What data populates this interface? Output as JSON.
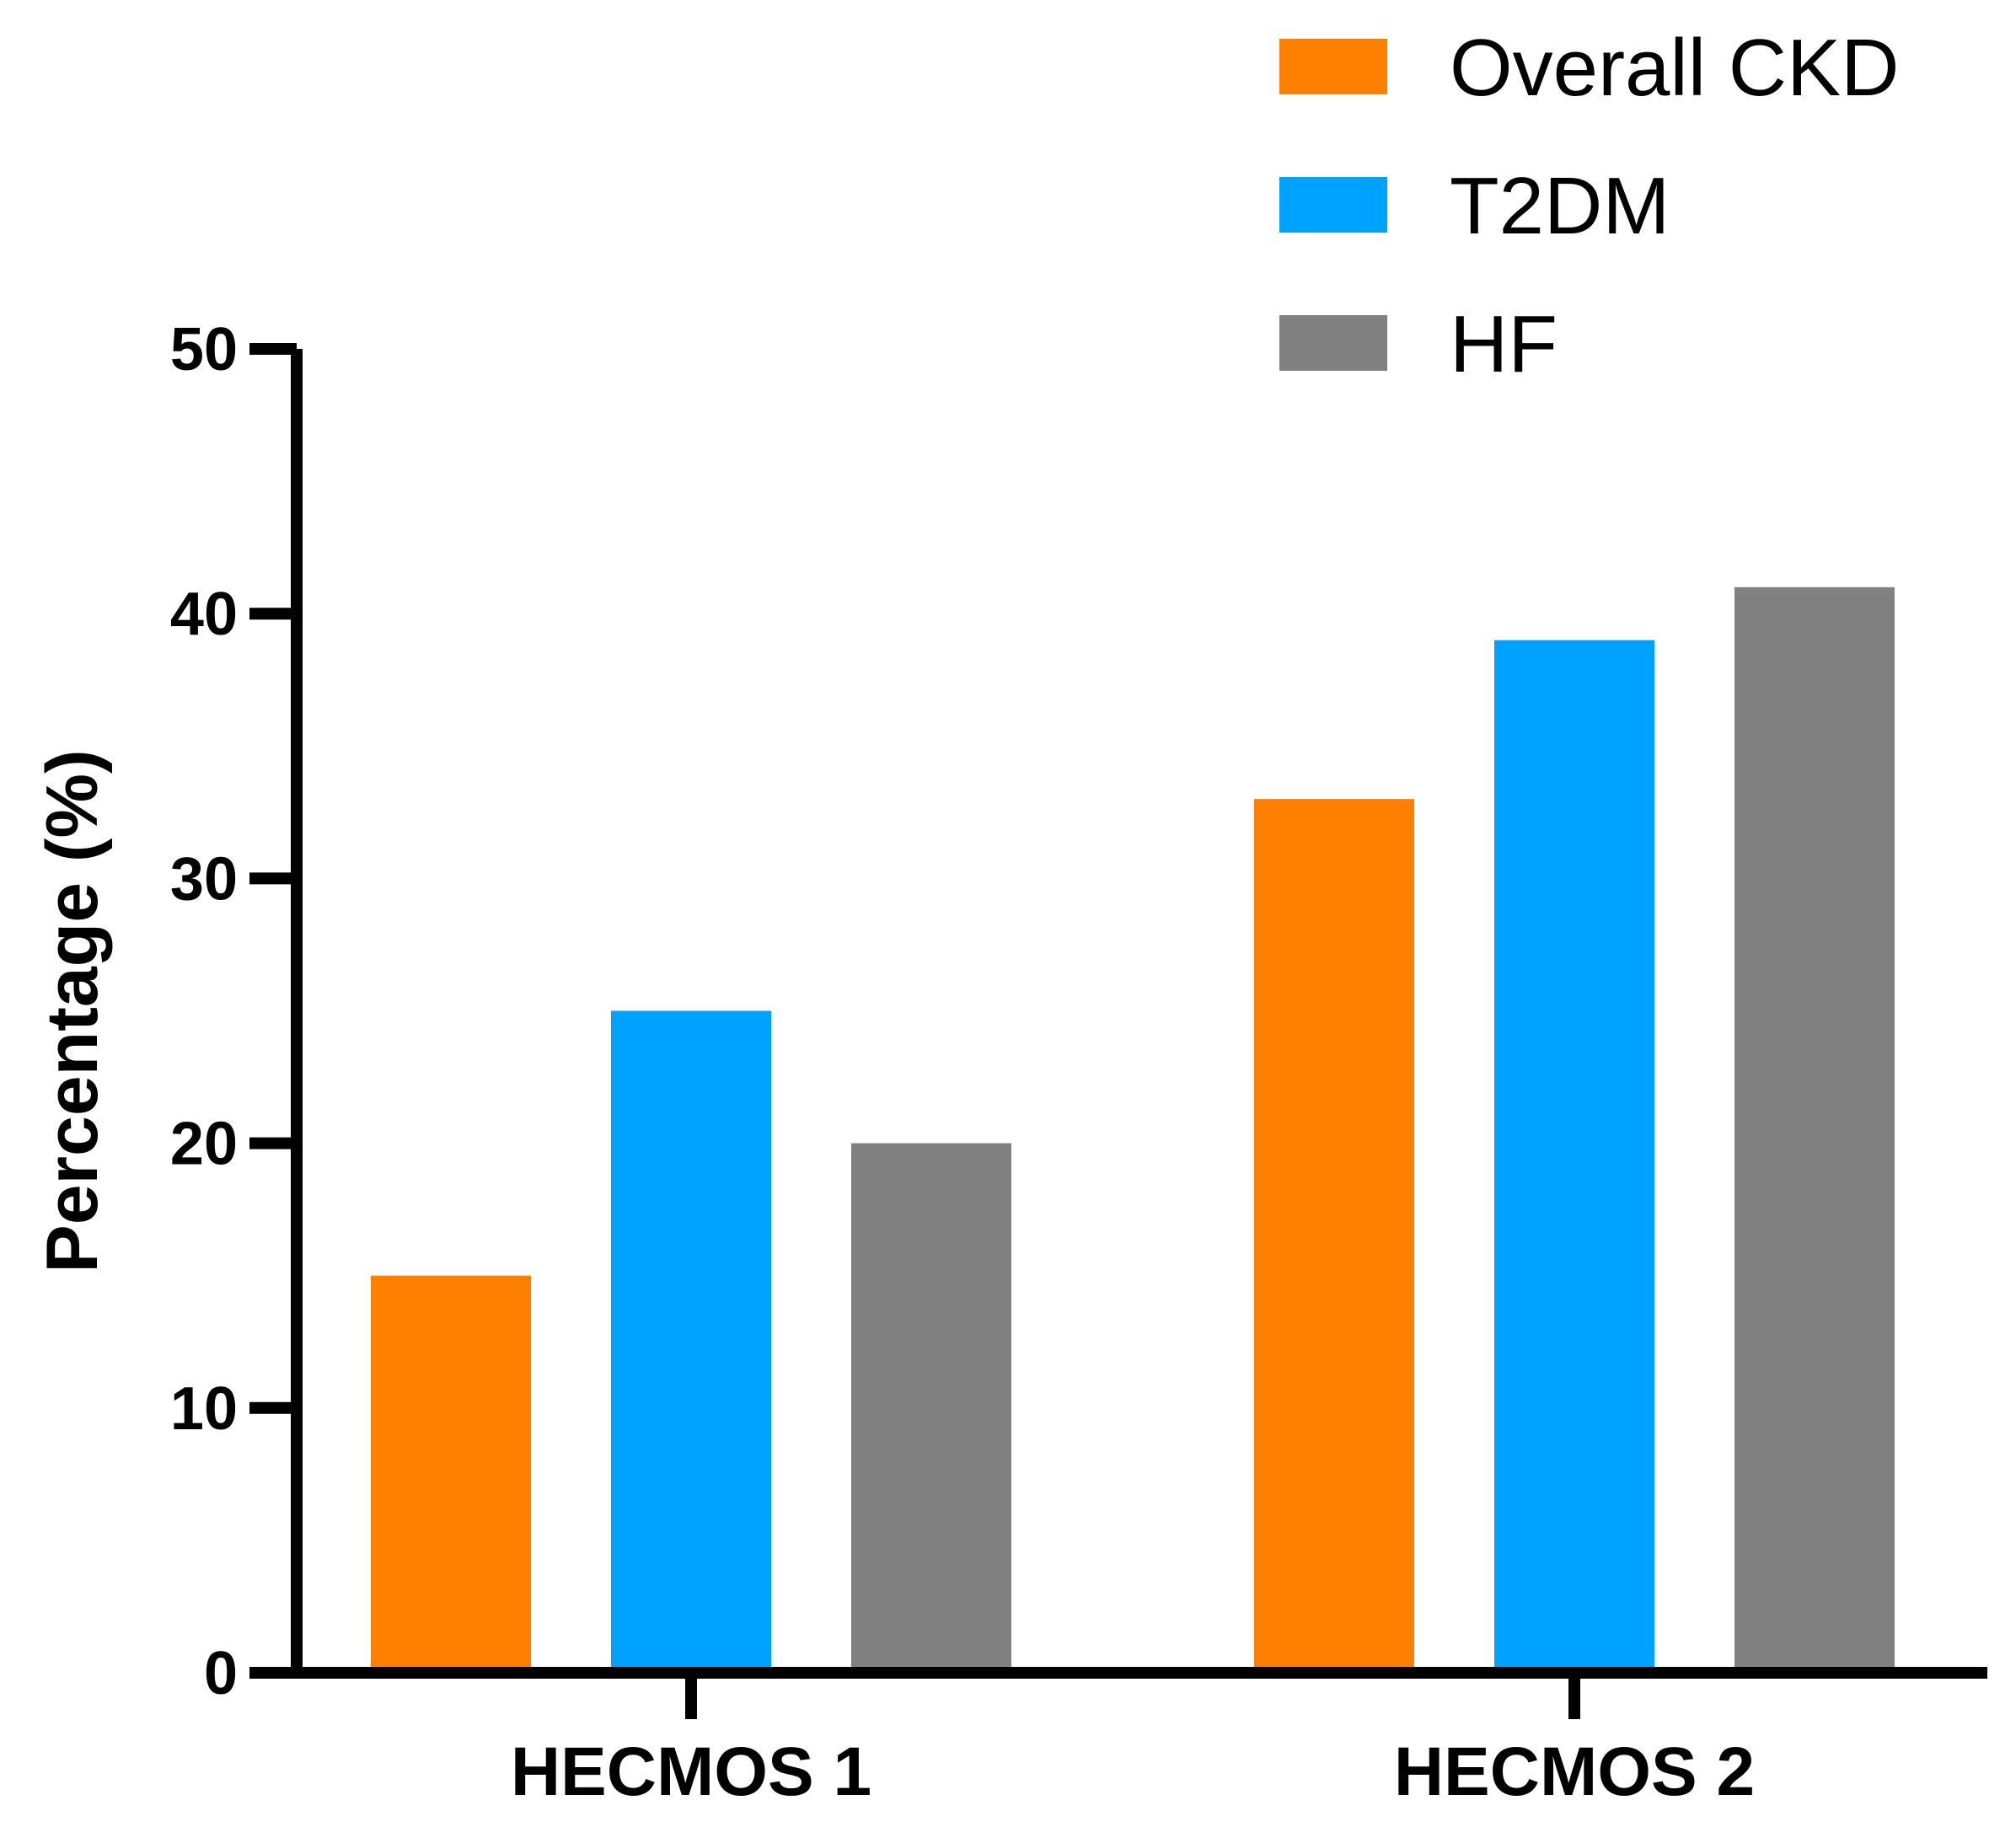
{
  "chart_data": {
    "type": "bar",
    "title": "",
    "xlabel": "",
    "ylabel": "Percentage (%)",
    "ylim": [
      0,
      50
    ],
    "yticks": [
      "0",
      "10",
      "20",
      "30",
      "40",
      "50"
    ],
    "categories": [
      "HECMOS 1",
      "HECMOS 2"
    ],
    "series": [
      {
        "name": "Overall CKD",
        "color": "#FF8000",
        "values": [
          15,
          33
        ]
      },
      {
        "name": "T2DM",
        "color": "#00A2FF",
        "values": [
          25,
          39
        ]
      },
      {
        "name": "HF",
        "color": "#808080",
        "values": [
          20,
          41
        ]
      }
    ],
    "legend_position": "top-right",
    "grid": false
  }
}
